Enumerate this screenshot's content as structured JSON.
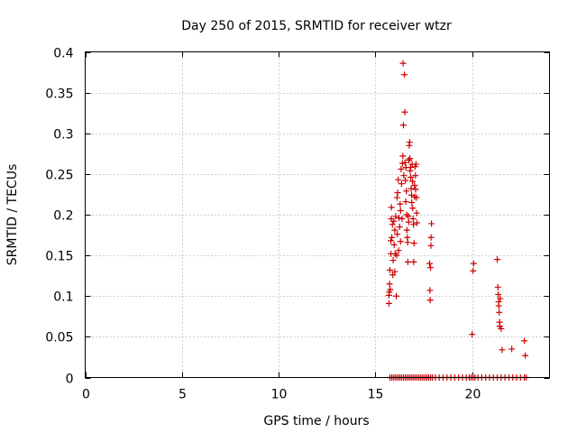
{
  "chart_data": {
    "type": "scatter",
    "title": "Day 250 of 2015, SRMTID for receiver wtzr",
    "xlabel": "GPS time / hours",
    "ylabel": "SRMTID / TECUs",
    "xlim": [
      0,
      24
    ],
    "ylim": [
      0,
      0.4
    ],
    "xticks": [
      0,
      5,
      10,
      15,
      20
    ],
    "yticks": [
      0,
      0.05,
      0.1,
      0.15,
      0.2,
      0.25,
      0.3,
      0.35,
      0.4
    ],
    "xtick_labels": [
      "0",
      "5",
      "10",
      "15",
      "20"
    ],
    "ytick_labels": [
      "0",
      "0.05",
      "0.1",
      "0.15",
      "0.2",
      "0.25",
      "0.3",
      "0.35",
      "0.4"
    ],
    "grid": true,
    "marker": "+",
    "color": "#cc0000",
    "series": [
      {
        "points": [
          [
            15.7,
            0.091
          ],
          [
            15.7,
            0.101
          ],
          [
            15.72,
            0.105
          ],
          [
            15.73,
            0.115
          ],
          [
            15.75,
            0.132
          ],
          [
            15.77,
            0.108
          ],
          [
            15.8,
            0.152
          ],
          [
            15.8,
            0.168
          ],
          [
            15.82,
            0.195
          ],
          [
            15.83,
            0.209
          ],
          [
            15.85,
            0.172
          ],
          [
            15.88,
            0.188
          ],
          [
            15.9,
            0.126
          ],
          [
            15.92,
            0.144
          ],
          [
            15.95,
            0.192
          ],
          [
            15.97,
            0.163
          ],
          [
            16.0,
            0.13
          ],
          [
            16.0,
            0.181
          ],
          [
            16.02,
            0.152
          ],
          [
            16.05,
            0.198
          ],
          [
            16.08,
            0.1
          ],
          [
            16.1,
            0.15
          ],
          [
            16.12,
            0.221
          ],
          [
            16.13,
            0.176
          ],
          [
            16.15,
            0.227
          ],
          [
            16.18,
            0.243
          ],
          [
            16.2,
            0.156
          ],
          [
            16.22,
            0.196
          ],
          [
            16.25,
            0.185
          ],
          [
            16.28,
            0.213
          ],
          [
            16.3,
            0.205
          ],
          [
            16.3,
            0.167
          ],
          [
            16.33,
            0.256
          ],
          [
            16.35,
            0.238
          ],
          [
            16.38,
            0.195
          ],
          [
            16.4,
            0.263
          ],
          [
            16.42,
            0.272
          ],
          [
            16.43,
            0.386
          ],
          [
            16.45,
            0.31
          ],
          [
            16.47,
            0.248
          ],
          [
            16.5,
            0.372
          ],
          [
            16.52,
            0.326
          ],
          [
            16.53,
            0.264
          ],
          [
            16.55,
            0.242
          ],
          [
            16.57,
            0.216
          ],
          [
            16.58,
            0.258
          ],
          [
            16.6,
            0.229
          ],
          [
            16.62,
            0.2
          ],
          [
            16.63,
            0.181
          ],
          [
            16.65,
            0.172
          ],
          [
            16.67,
            0.166
          ],
          [
            16.68,
            0.142
          ],
          [
            16.7,
            0.198
          ],
          [
            16.72,
            0.191
          ],
          [
            16.73,
            0.267
          ],
          [
            16.75,
            0.285
          ],
          [
            16.77,
            0.289
          ],
          [
            16.78,
            0.269
          ],
          [
            16.8,
            0.254
          ],
          [
            16.82,
            0.258
          ],
          [
            16.83,
            0.246
          ],
          [
            16.85,
            0.232
          ],
          [
            16.87,
            0.224
          ],
          [
            16.88,
            0.215
          ],
          [
            16.9,
            0.262
          ],
          [
            16.92,
            0.241
          ],
          [
            16.93,
            0.208
          ],
          [
            16.95,
            0.195
          ],
          [
            16.97,
            0.188
          ],
          [
            16.98,
            0.142
          ],
          [
            17.0,
            0.165
          ],
          [
            17.02,
            0.236
          ],
          [
            17.03,
            0.222
          ],
          [
            17.05,
            0.259
          ],
          [
            17.07,
            0.248
          ],
          [
            17.08,
            0.231
          ],
          [
            17.1,
            0.262
          ],
          [
            17.12,
            0.221
          ],
          [
            17.13,
            0.202
          ],
          [
            17.15,
            0.19
          ],
          [
            17.8,
            0.14
          ],
          [
            17.82,
            0.107
          ],
          [
            17.83,
            0.095
          ],
          [
            17.85,
            0.135
          ],
          [
            17.87,
            0.162
          ],
          [
            17.88,
            0.172
          ],
          [
            17.9,
            0.189
          ],
          [
            20.0,
            0.053
          ],
          [
            20.05,
            0.131
          ],
          [
            20.08,
            0.14
          ],
          [
            21.3,
            0.145
          ],
          [
            21.33,
            0.111
          ],
          [
            21.35,
            0.102
          ],
          [
            21.37,
            0.093
          ],
          [
            21.38,
            0.088
          ],
          [
            21.4,
            0.08
          ],
          [
            21.42,
            0.068
          ],
          [
            21.43,
            0.063
          ],
          [
            21.45,
            0.097
          ],
          [
            21.5,
            0.06
          ],
          [
            21.55,
            0.034
          ],
          [
            22.05,
            0.035
          ],
          [
            22.7,
            0.045
          ],
          [
            22.75,
            0.027
          ],
          [
            15.75,
            0
          ],
          [
            15.85,
            0
          ],
          [
            15.95,
            0
          ],
          [
            16.05,
            0
          ],
          [
            16.15,
            0
          ],
          [
            16.25,
            0
          ],
          [
            16.35,
            0
          ],
          [
            16.45,
            0
          ],
          [
            16.55,
            0
          ],
          [
            16.65,
            0
          ],
          [
            16.75,
            0
          ],
          [
            16.85,
            0
          ],
          [
            16.95,
            0
          ],
          [
            17.05,
            0
          ],
          [
            17.15,
            0
          ],
          [
            17.25,
            0
          ],
          [
            17.35,
            0
          ],
          [
            17.45,
            0
          ],
          [
            17.55,
            0
          ],
          [
            17.65,
            0
          ],
          [
            17.75,
            0
          ],
          [
            17.85,
            0
          ],
          [
            17.95,
            0
          ],
          [
            18.1,
            0
          ],
          [
            18.3,
            0
          ],
          [
            18.5,
            0
          ],
          [
            18.7,
            0
          ],
          [
            18.9,
            0
          ],
          [
            19.1,
            0
          ],
          [
            19.3,
            0
          ],
          [
            19.5,
            0
          ],
          [
            19.7,
            0
          ],
          [
            19.85,
            0
          ],
          [
            19.95,
            0
          ],
          [
            20.05,
            0
          ],
          [
            20.15,
            0
          ],
          [
            20.3,
            0
          ],
          [
            20.5,
            0
          ],
          [
            20.7,
            0
          ],
          [
            20.9,
            0
          ],
          [
            21.1,
            0
          ],
          [
            21.3,
            0
          ],
          [
            21.5,
            0
          ],
          [
            21.7,
            0
          ],
          [
            21.9,
            0
          ],
          [
            22.1,
            0
          ],
          [
            22.3,
            0
          ],
          [
            22.5,
            0
          ],
          [
            22.7,
            0
          ],
          [
            22.8,
            0
          ]
        ]
      }
    ]
  }
}
